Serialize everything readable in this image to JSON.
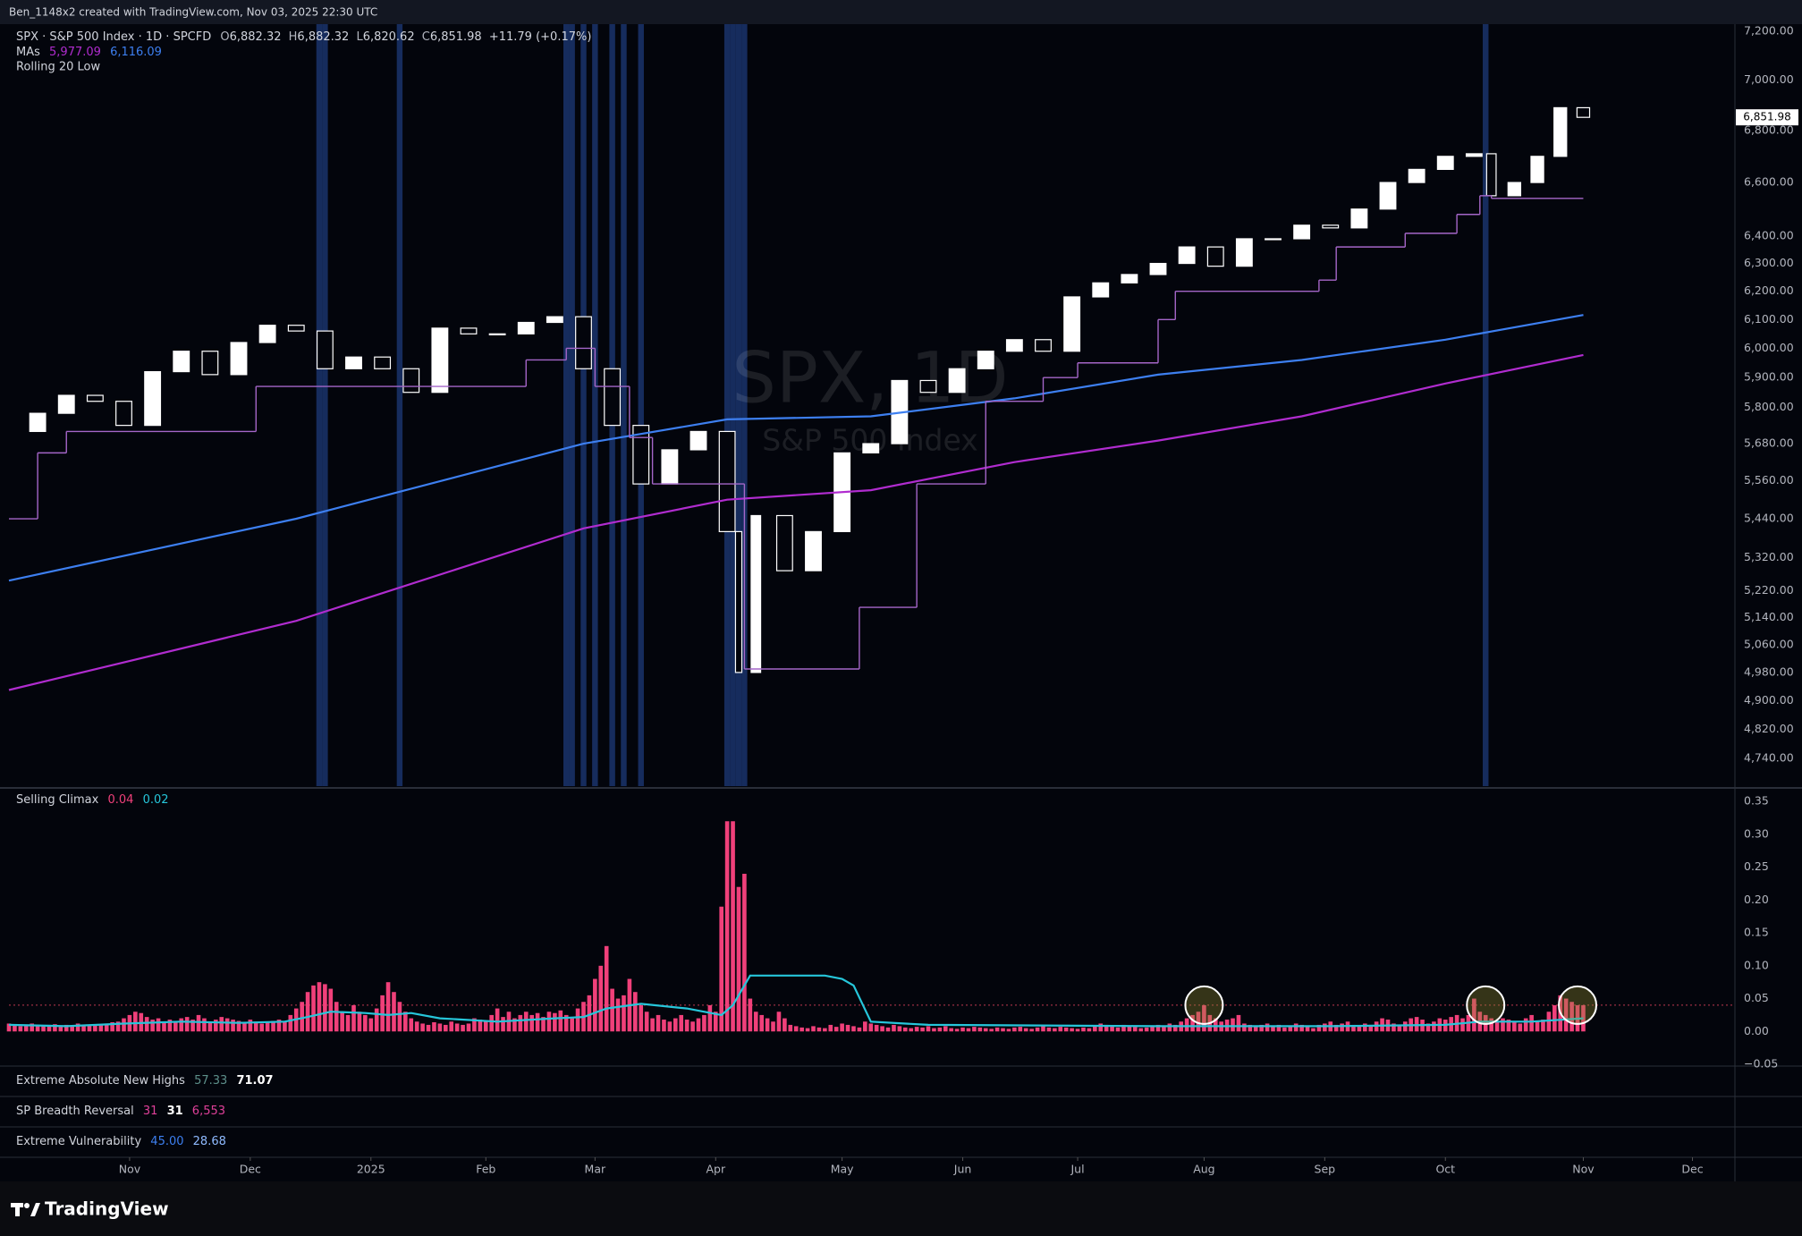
{
  "header": {
    "text": "Ben_1148x2 created with TradingView.com, Nov 03, 2025 22:30 UTC"
  },
  "chart_data": [
    {
      "type": "candlestick",
      "title": "SPX · S&P 500 Index · 1D · SPCFD",
      "ohlc": [
        {
          "key": "O",
          "value": "6,882.32"
        },
        {
          "key": "H",
          "value": "6,882.32"
        },
        {
          "key": "L",
          "value": "6,820.62"
        },
        {
          "key": "C",
          "value": "6,851.98"
        }
      ],
      "change": "+11.79 (+0.17%)",
      "ma_legend": {
        "label": "MAs",
        "values": [
          "5,977.09",
          "6,116.09"
        ]
      },
      "watermark": "SPX, 1D",
      "watermark_subtitle": "S&P 500 Index",
      "last_label": "6,851.98",
      "log": true,
      "grid": false,
      "xlim": [
        0,
        300
      ],
      "xticks": [
        {
          "value": 21,
          "label": "Nov"
        },
        {
          "value": 42,
          "label": "Dec"
        },
        {
          "value": 63,
          "label": "2025"
        },
        {
          "value": 83,
          "label": "Feb"
        },
        {
          "value": 102,
          "label": "Mar"
        },
        {
          "value": 123,
          "label": "Apr"
        },
        {
          "value": 145,
          "label": "May"
        },
        {
          "value": 166,
          "label": "Jun"
        },
        {
          "value": 186,
          "label": "Jul"
        },
        {
          "value": 208,
          "label": "Aug"
        },
        {
          "value": 229,
          "label": "Sep"
        },
        {
          "value": 250,
          "label": "Oct"
        },
        {
          "value": 274,
          "label": "Nov"
        },
        {
          "value": 293,
          "label": "Dec"
        }
      ],
      "ylim": [
        4665,
        7229
      ],
      "yticks": [
        {
          "value": 7200,
          "label": "7,200.00"
        },
        {
          "value": 7000,
          "label": "7,000.00"
        },
        {
          "value": 6800,
          "label": "6,800.00"
        },
        {
          "value": 6600,
          "label": "6,600.00"
        },
        {
          "value": 6400,
          "label": "6,400.00"
        },
        {
          "value": 6300,
          "label": "6,300.00"
        },
        {
          "value": 6200,
          "label": "6,200.00"
        },
        {
          "value": 6100,
          "label": "6,100.00"
        },
        {
          "value": 6000,
          "label": "6,000.00"
        },
        {
          "value": 5900,
          "label": "5,900.00"
        },
        {
          "value": 5800,
          "label": "5,800.00"
        },
        {
          "value": 5680,
          "label": "5,680.00"
        },
        {
          "value": 5560,
          "label": "5,560.00"
        },
        {
          "value": 5440,
          "label": "5,440.00"
        },
        {
          "value": 5320,
          "label": "5,320.00"
        },
        {
          "value": 5220,
          "label": "5,220.00"
        },
        {
          "value": 5140,
          "label": "5,140.00"
        },
        {
          "value": 5060,
          "label": "5,060.00"
        },
        {
          "value": 4980,
          "label": "4,980.00"
        },
        {
          "value": 4900,
          "label": "4,900.00"
        },
        {
          "value": 4820,
          "label": "4,820.00"
        },
        {
          "value": 4740,
          "label": "4,740.00"
        }
      ],
      "highlight_days": [
        54,
        55,
        68,
        97,
        98,
        100,
        102,
        105,
        107,
        110,
        125,
        126,
        127,
        128,
        257
      ],
      "highlight_color": "#1e3a78",
      "series": [
        {
          "color": "#ffffff",
          "x": [
            0,
            5,
            10,
            15,
            20,
            25,
            30,
            35,
            40,
            45,
            50,
            55,
            60,
            65,
            70,
            75,
            80,
            85,
            90,
            95,
            100,
            105,
            110,
            115,
            120,
            125,
            127,
            130,
            135,
            140,
            145,
            150,
            155,
            160,
            165,
            170,
            175,
            180,
            185,
            190,
            195,
            200,
            205,
            210,
            215,
            220,
            225,
            230,
            235,
            240,
            245,
            250,
            255,
            258,
            262,
            266,
            270,
            274
          ],
          "values": [
            5720,
            5780,
            5840,
            5820,
            5740,
            5920,
            5990,
            5910,
            6020,
            6080,
            6060,
            5930,
            5970,
            5930,
            5850,
            6070,
            6050,
            6050,
            6090,
            6110,
            5930,
            5740,
            5550,
            5660,
            5720,
            5400,
            4980,
            5450,
            5280,
            5400,
            5650,
            5680,
            5890,
            5850,
            5930,
            5990,
            6030,
            5990,
            6180,
            6230,
            6260,
            6300,
            6360,
            6290,
            6390,
            6390,
            6440,
            6430,
            6500,
            6600,
            6650,
            6700,
            6710,
            6550,
            6600,
            6700,
            6890,
            6851.98
          ]
        },
        {
          "color": "#3d7ff0",
          "x": [
            0,
            50,
            100,
            125,
            150,
            175,
            200,
            225,
            250,
            274
          ],
          "values": [
            5250,
            5440,
            5680,
            5760,
            5770,
            5830,
            5910,
            5960,
            6030,
            6116.09
          ]
        },
        {
          "color": "#b02ccf",
          "x": [
            0,
            50,
            100,
            125,
            150,
            175,
            200,
            225,
            250,
            274
          ],
          "values": [
            4930,
            5130,
            5410,
            5500,
            5530,
            5620,
            5690,
            5770,
            5880,
            5977.09
          ]
        },
        {
          "name": "Rolling 20 Low",
          "color": "#a466c8",
          "step": true,
          "x": [
            0,
            5,
            10,
            43,
            90,
            97,
            102,
            108,
            112,
            128,
            148,
            158,
            170,
            180,
            186,
            200,
            203,
            228,
            231,
            243,
            252,
            256,
            258,
            274
          ],
          "values": [
            5440,
            5650,
            5720,
            5870,
            5960,
            6000,
            5870,
            5700,
            5550,
            4990,
            5170,
            5550,
            5820,
            5900,
            5950,
            6100,
            6200,
            6240,
            6360,
            6410,
            6480,
            6550,
            6540,
            6540
          ]
        }
      ]
    },
    {
      "type": "bar",
      "title": "Selling Climax",
      "legend_values": [
        "0.04",
        "0.02"
      ],
      "xlim": [
        0,
        300
      ],
      "ylim": [
        -0.05,
        0.368
      ],
      "yticks": [
        0.35,
        {
          "value": 0.3,
          "label": "0.30"
        },
        0.25,
        {
          "value": 0.2,
          "label": "0.20"
        },
        0.15,
        {
          "value": 0.1,
          "label": "0.10"
        },
        0.05,
        {
          "value": 0,
          "label": "0.00"
        },
        {
          "value": -0.05,
          "label": "−0.05"
        }
      ],
      "threshold": 0.04,
      "circled_days": [
        208,
        257,
        273
      ],
      "series": [
        {
          "color": "#f0407a",
          "values": [
            0.012,
            0.01,
            0.008,
            0.01,
            0.012,
            0.009,
            0.008,
            0.01,
            0.011,
            0.009,
            0.01,
            0.008,
            0.012,
            0.01,
            0.009,
            0.011,
            0.01,
            0.012,
            0.014,
            0.015,
            0.02,
            0.025,
            0.03,
            0.028,
            0.022,
            0.018,
            0.02,
            0.015,
            0.018,
            0.016,
            0.02,
            0.022,
            0.018,
            0.025,
            0.02,
            0.015,
            0.018,
            0.022,
            0.02,
            0.018,
            0.016,
            0.014,
            0.018,
            0.015,
            0.012,
            0.014,
            0.016,
            0.018,
            0.015,
            0.025,
            0.035,
            0.045,
            0.06,
            0.07,
            0.075,
            0.072,
            0.065,
            0.045,
            0.03,
            0.025,
            0.04,
            0.03,
            0.025,
            0.02,
            0.035,
            0.055,
            0.075,
            0.06,
            0.045,
            0.03,
            0.02,
            0.015,
            0.012,
            0.01,
            0.014,
            0.012,
            0.01,
            0.015,
            0.012,
            0.01,
            0.012,
            0.02,
            0.018,
            0.015,
            0.025,
            0.035,
            0.022,
            0.03,
            0.02,
            0.025,
            0.03,
            0.025,
            0.028,
            0.022,
            0.03,
            0.028,
            0.032,
            0.025,
            0.02,
            0.035,
            0.045,
            0.055,
            0.08,
            0.1,
            0.13,
            0.065,
            0.05,
            0.055,
            0.08,
            0.06,
            0.04,
            0.03,
            0.02,
            0.025,
            0.018,
            0.015,
            0.02,
            0.025,
            0.018,
            0.015,
            0.02,
            0.025,
            0.04,
            0.03,
            0.19,
            0.32,
            0.32,
            0.22,
            0.24,
            0.05,
            0.03,
            0.025,
            0.02,
            0.015,
            0.03,
            0.02,
            0.01,
            0.008,
            0.006,
            0.005,
            0.008,
            0.006,
            0.005,
            0.01,
            0.007,
            0.012,
            0.01,
            0.008,
            0.006,
            0.015,
            0.012,
            0.01,
            0.008,
            0.006,
            0.01,
            0.008,
            0.006,
            0.005,
            0.007,
            0.006,
            0.008,
            0.005,
            0.006,
            0.008,
            0.005,
            0.004,
            0.006,
            0.005,
            0.007,
            0.006,
            0.005,
            0.004,
            0.006,
            0.005,
            0.004,
            0.006,
            0.007,
            0.005,
            0.004,
            0.006,
            0.008,
            0.006,
            0.005,
            0.007,
            0.006,
            0.005,
            0.004,
            0.006,
            0.005,
            0.008,
            0.012,
            0.01,
            0.008,
            0.006,
            0.01,
            0.008,
            0.007,
            0.005,
            0.006,
            0.008,
            0.01,
            0.008,
            0.012,
            0.01,
            0.015,
            0.02,
            0.025,
            0.03,
            0.04,
            0.025,
            0.02,
            0.015,
            0.018,
            0.02,
            0.025,
            0.012,
            0.01,
            0.008,
            0.01,
            0.012,
            0.008,
            0.01,
            0.006,
            0.008,
            0.012,
            0.01,
            0.008,
            0.005,
            0.01,
            0.012,
            0.015,
            0.01,
            0.012,
            0.015,
            0.01,
            0.008,
            0.012,
            0.01,
            0.015,
            0.02,
            0.018,
            0.012,
            0.01,
            0.015,
            0.02,
            0.022,
            0.018,
            0.012,
            0.015,
            0.02,
            0.018,
            0.022,
            0.025,
            0.02,
            0.025,
            0.05,
            0.03,
            0.025,
            0.02,
            0.015,
            0.02,
            0.018,
            0.015,
            0.012,
            0.02,
            0.025,
            0.015,
            0.018,
            0.03,
            0.04,
            0.055,
            0.05,
            0.045,
            0.04,
            0.04
          ]
        },
        {
          "type": "line",
          "color": "#26c6da",
          "x": [
            0,
            10,
            20,
            30,
            40,
            48,
            52,
            56,
            62,
            66,
            70,
            75,
            85,
            95,
            100,
            104,
            110,
            118,
            124,
            126,
            129,
            142,
            145,
            147,
            150,
            160,
            200,
            230,
            250,
            256,
            265,
            274
          ],
          "values": [
            0.01,
            0.008,
            0.012,
            0.015,
            0.013,
            0.015,
            0.022,
            0.03,
            0.028,
            0.025,
            0.028,
            0.02,
            0.015,
            0.02,
            0.022,
            0.035,
            0.042,
            0.035,
            0.025,
            0.04,
            0.085,
            0.085,
            0.08,
            0.07,
            0.015,
            0.01,
            0.008,
            0.008,
            0.01,
            0.015,
            0.015,
            0.02
          ]
        }
      ]
    }
  ],
  "panels": [
    {
      "title": "Extreme Absolute New Highs",
      "values": [
        "57.33",
        "71.07"
      ]
    },
    {
      "title": "SP Breadth Reversal",
      "values": [
        "31",
        "31",
        "6,553"
      ]
    },
    {
      "title": "Extreme Vulnerability",
      "values": [
        "45.00",
        "28.68"
      ]
    }
  ],
  "footer": {
    "brand": "TradingView"
  }
}
